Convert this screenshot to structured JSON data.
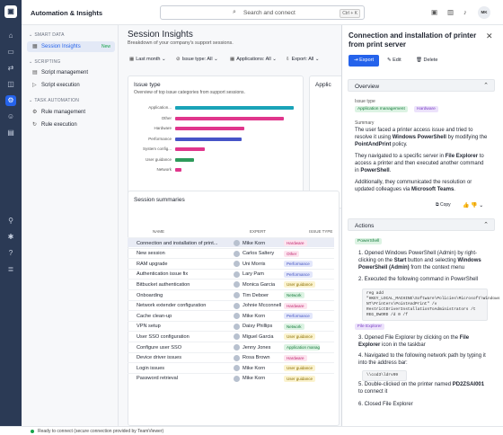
{
  "app": {
    "title": "Automation & Insights",
    "logo": "TeamViewer"
  },
  "search": {
    "placeholder": "Search and connect",
    "shortcut": "Ctrl + K"
  },
  "user": {
    "initials": "MK"
  },
  "sidebar": {
    "sections": [
      {
        "label": "SMART DATA",
        "items": [
          {
            "label": "Session Insights",
            "badge": "New",
            "active": true
          }
        ]
      },
      {
        "label": "SCRIPTING",
        "items": [
          {
            "label": "Script management"
          },
          {
            "label": "Script execution"
          }
        ]
      },
      {
        "label": "TASK AUTOMATION",
        "items": [
          {
            "label": "Rule management"
          },
          {
            "label": "Rule execution"
          }
        ]
      }
    ]
  },
  "page": {
    "title": "Session Insights",
    "subtitle": "Breakdown of your company's support sessions.",
    "filters": [
      "Last month",
      "Issue type: All",
      "Applications: All",
      "Export: All"
    ]
  },
  "issue_card": {
    "title": "Issue type",
    "subtitle": "Overview of top issue categories from support sessions.",
    "second_title": "Applic"
  },
  "chart_data": {
    "type": "bar",
    "orientation": "horizontal",
    "categories": [
      "Application...",
      "Other",
      "Hardware",
      "Performance",
      "System config...",
      "User guidance",
      "Network"
    ],
    "values": [
      100,
      92,
      58,
      56,
      25,
      16,
      5
    ],
    "colors": [
      "#1aa3b8",
      "#e0368c",
      "#e0368c",
      "#4654c7",
      "#e0368c",
      "#2e9a5a",
      "#e0368c"
    ]
  },
  "table": {
    "title": "Session summaries",
    "columns": [
      "NAME",
      "EXPERT",
      "ISSUE TYPE"
    ],
    "rows": [
      {
        "name": "Connection and installation of print...",
        "expert": "Mike Korn",
        "type": "Hardware",
        "kind": "pink",
        "selected": true
      },
      {
        "name": "New session",
        "expert": "Carlos Saltery",
        "type": "Other",
        "kind": "pink"
      },
      {
        "name": "RAM upgrade",
        "expert": "Uni Morris",
        "type": "Performance",
        "kind": "blue"
      },
      {
        "name": "Authentication issue fix",
        "expert": "Lary Pam",
        "type": "Performance",
        "kind": "blue"
      },
      {
        "name": "Bitbucket authentication",
        "expert": "Monica Garcia",
        "type": "User guidance",
        "kind": "yellow"
      },
      {
        "name": "Onboarding",
        "expert": "Tim Deboer",
        "type": "Network",
        "kind": "green"
      },
      {
        "name": "Network extender configuration",
        "expert": "Johnie Mcconnell",
        "type": "Hardware",
        "kind": "pink"
      },
      {
        "name": "Cache clean-up",
        "expert": "Mike Korn",
        "type": "Performance",
        "kind": "blue"
      },
      {
        "name": "VPN setup",
        "expert": "Daisy Phillips",
        "type": "Network",
        "kind": "green"
      },
      {
        "name": "User SSO configuration",
        "expert": "Miguel Garcia",
        "type": "User guidance",
        "kind": "yellow"
      },
      {
        "name": "Configure user SSO",
        "expert": "Jenny Jones",
        "type": "Application manag",
        "kind": "green"
      },
      {
        "name": "Device driver issues",
        "expert": "Rosa Brown",
        "type": "Hardware",
        "kind": "pink"
      },
      {
        "name": "Login issues",
        "expert": "Mike Korn",
        "type": "User guidance",
        "kind": "yellow"
      },
      {
        "name": "Password retrieval",
        "expert": "Mike Korn",
        "type": "User guidance",
        "kind": "yellow"
      }
    ]
  },
  "panel": {
    "title": "Connection and installation of printer from print server",
    "export_label": "Export",
    "edit_label": "Edit",
    "delete_label": "Delete",
    "overview_label": "Overview",
    "issue_type_label": "Issue type",
    "tags": [
      "Application management",
      "Hardware"
    ],
    "summary_label": "Summary",
    "copy_label": "Copy",
    "actions_label": "Actions",
    "ps_tag": "PowerShell",
    "fe_tag": "File Explorer",
    "code1": "reg add \"HKEY_LOCAL_MACHINE\\Software\\Policies\\Microsoft\\Windows NT\\Printers\\PointAndPrint\" /v RestrictDriverInstallationToAdministrators /t REG_DWORD /d 0 /f",
    "path": "\\\\cod3\\ldrv09"
  },
  "status": {
    "text": "Ready to connect (secure connection provided by TeamViewer)"
  }
}
